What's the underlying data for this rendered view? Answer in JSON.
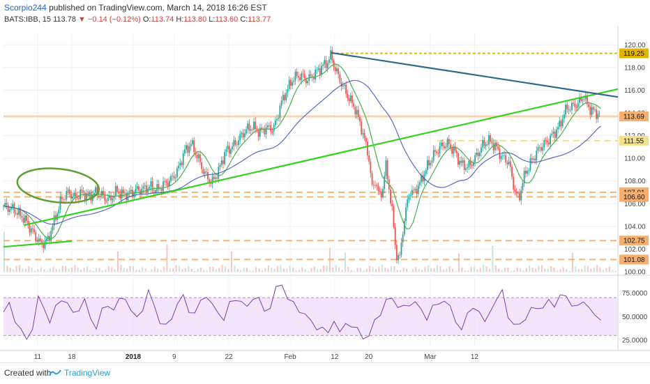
{
  "header": {
    "author": "Scorpio244",
    "published": "published on TradingView.com, March 14, 2018 16:26 EST",
    "symbol": "BATS:IBB, 15",
    "last": "113.78",
    "change": "−0.14 (−0.12%)",
    "o_label": "O:",
    "o_val": "113.74",
    "h_label": "H:",
    "h_val": "113.80",
    "l_label": "L:",
    "l_val": "113.60",
    "c_label": "C:",
    "c_val": "113.77"
  },
  "footer": {
    "created_with": "Created with",
    "brand": "TradingView"
  },
  "colors": {
    "up": "#26a69a",
    "down": "#ef5350",
    "fast_ma": "#4caf50",
    "slow_ma": "#3f51b5",
    "trend_green": "#35d21f",
    "trend_blue": "#2b6b84",
    "level_orange": "#f5b070",
    "level_gold": "#e0b400",
    "rsi": "#7e3fb0",
    "rsi_band": "#efdcf8"
  },
  "chart_data": [
    {
      "type": "candlestick",
      "symbol": "BATS:IBB",
      "interval": "15",
      "x_ticks": [
        "11",
        "18",
        "2018",
        "9",
        "22",
        "Feb",
        "12",
        "20",
        "Mar",
        "12"
      ],
      "ylim": [
        100,
        121
      ],
      "y_ticks": [
        "120.00",
        "118.00",
        "116.00",
        "114.00",
        "112.00",
        "110.00",
        "108.00",
        "106.00",
        "104.00",
        "102.00",
        "100.00"
      ],
      "price_labels": [
        {
          "value": 119.25,
          "text": "119.25",
          "color": "#e0b400"
        },
        {
          "value": 113.69,
          "text": "113.69",
          "color": "#f5b070"
        },
        {
          "value": 111.55,
          "text": "111.55",
          "color": "#f5e08a"
        },
        {
          "value": 107.01,
          "text": "107.01",
          "color": "#f5b070"
        },
        {
          "value": 106.6,
          "text": "106.60",
          "color": "#f5b070"
        },
        {
          "value": 102.75,
          "text": "102.75",
          "color": "#f5b070"
        },
        {
          "value": 101.08,
          "text": "101.08",
          "color": "#f5b070"
        }
      ],
      "price_path": [
        [
          0,
          105.8
        ],
        [
          3,
          105.5
        ],
        [
          6,
          104.7
        ],
        [
          9,
          103.3
        ],
        [
          11,
          102.4
        ],
        [
          13,
          102.8
        ],
        [
          15,
          104.6
        ],
        [
          17,
          106.4
        ],
        [
          19,
          107.0
        ],
        [
          21,
          106.5
        ],
        [
          23,
          107.0
        ],
        [
          25,
          106.6
        ],
        [
          27,
          107.0
        ],
        [
          29,
          106.7
        ],
        [
          31,
          106.3
        ],
        [
          33,
          107.1
        ],
        [
          35,
          106.8
        ],
        [
          37,
          106.9
        ],
        [
          39,
          107.2
        ],
        [
          41,
          107.3
        ],
        [
          43,
          107.5
        ],
        [
          45,
          107.2
        ],
        [
          47,
          107.7
        ],
        [
          49,
          108.1
        ],
        [
          51,
          108.9
        ],
        [
          53,
          110.6
        ],
        [
          55,
          111.3
        ],
        [
          57,
          110.0
        ],
        [
          59,
          108.6
        ],
        [
          61,
          107.8
        ],
        [
          63,
          108.9
        ],
        [
          65,
          110.6
        ],
        [
          67,
          111.0
        ],
        [
          69,
          111.7
        ],
        [
          71,
          112.5
        ],
        [
          73,
          112.8
        ],
        [
          75,
          112.3
        ],
        [
          77,
          112.7
        ],
        [
          79,
          112.6
        ],
        [
          80,
          113.3
        ],
        [
          81,
          114.6
        ],
        [
          83,
          116.0
        ],
        [
          85,
          117.1
        ],
        [
          87,
          117.3
        ],
        [
          89,
          116.9
        ],
        [
          91,
          117.4
        ],
        [
          93,
          118.0
        ],
        [
          95,
          118.5
        ],
        [
          96,
          119.1
        ],
        [
          97,
          118.0
        ],
        [
          99,
          116.6
        ],
        [
          101,
          115.4
        ],
        [
          103,
          114.4
        ],
        [
          105,
          112.5
        ],
        [
          107,
          110.2
        ],
        [
          108,
          107.3
        ],
        [
          109,
          108.1
        ],
        [
          110,
          106.6
        ],
        [
          111,
          107.1
        ],
        [
          112,
          109.4
        ],
        [
          113,
          107.3
        ],
        [
          114,
          104.9
        ],
        [
          115,
          101.6
        ],
        [
          116,
          101.0
        ],
        [
          117,
          103.7
        ],
        [
          118,
          105.6
        ],
        [
          119,
          107.2
        ],
        [
          120,
          106.9
        ],
        [
          122,
          107.8
        ],
        [
          124,
          109.2
        ],
        [
          126,
          110.3
        ],
        [
          128,
          111.0
        ],
        [
          130,
          111.3
        ],
        [
          132,
          110.7
        ],
        [
          134,
          109.5
        ],
        [
          136,
          109.2
        ],
        [
          138,
          109.9
        ],
        [
          140,
          111.0
        ],
        [
          142,
          111.6
        ],
        [
          144,
          111.1
        ],
        [
          146,
          110.1
        ],
        [
          148,
          109.7
        ],
        [
          149,
          108.2
        ],
        [
          150,
          106.9
        ],
        [
          151,
          106.4
        ],
        [
          152,
          107.8
        ],
        [
          153,
          108.8
        ],
        [
          155,
          109.9
        ],
        [
          157,
          110.9
        ],
        [
          159,
          111.4
        ],
        [
          161,
          112.1
        ],
        [
          163,
          112.9
        ],
        [
          164,
          113.8
        ],
        [
          165,
          114.4
        ],
        [
          167,
          114.6
        ],
        [
          169,
          115.0
        ],
        [
          170,
          115.6
        ],
        [
          171,
          114.7
        ],
        [
          172,
          114.3
        ],
        [
          173,
          114.1
        ],
        [
          175,
          113.78
        ]
      ],
      "trendlines": [
        {
          "name": "rising support",
          "from": [
            0,
            102.2
          ],
          "to": [
            20,
            102.7
          ]
        },
        {
          "name": "rising trend",
          "from": [
            6,
            104.1
          ],
          "to": [
            180,
            116.1
          ]
        },
        {
          "name": "falling resistance",
          "from": [
            96,
            119.3
          ],
          "to": [
            180,
            115.4
          ]
        }
      ],
      "levels": [
        {
          "value": 119.25,
          "from": 96
        },
        {
          "value": 113.69,
          "from": 0
        },
        {
          "value": 111.55,
          "from": 127
        },
        {
          "value": 107.01,
          "from": 0
        },
        {
          "value": 106.6,
          "from": 0
        },
        {
          "value": 102.75,
          "from": 0
        },
        {
          "value": 101.08,
          "from": 0
        }
      ]
    },
    {
      "type": "line",
      "name": "RSI",
      "ylim": [
        20,
        90
      ],
      "y_ticks": [
        "75.0000",
        "50.0000",
        "25.0000"
      ],
      "band": [
        30,
        70
      ],
      "values": [
        55,
        62,
        48,
        35,
        25,
        40,
        68,
        60,
        45,
        58,
        70,
        64,
        52,
        60,
        66,
        48,
        40,
        55,
        63,
        58,
        66,
        72,
        55,
        48,
        60,
        75,
        62,
        45,
        38,
        50,
        64,
        70,
        58,
        52,
        66,
        74,
        60,
        55,
        48,
        62,
        70,
        66,
        58,
        72,
        68,
        55,
        62,
        78,
        85,
        70,
        62,
        58,
        52,
        44,
        40,
        36,
        33,
        48,
        30,
        45,
        40,
        35,
        30,
        28,
        45,
        55,
        65,
        70,
        62,
        58,
        64,
        66,
        55,
        50,
        60,
        62,
        70,
        58,
        45,
        38,
        50,
        62,
        55,
        42,
        60,
        65,
        78,
        52,
        38,
        44,
        48,
        56,
        62,
        58,
        66,
        64,
        70,
        72,
        64,
        58,
        68,
        60,
        48,
        50
      ]
    }
  ]
}
